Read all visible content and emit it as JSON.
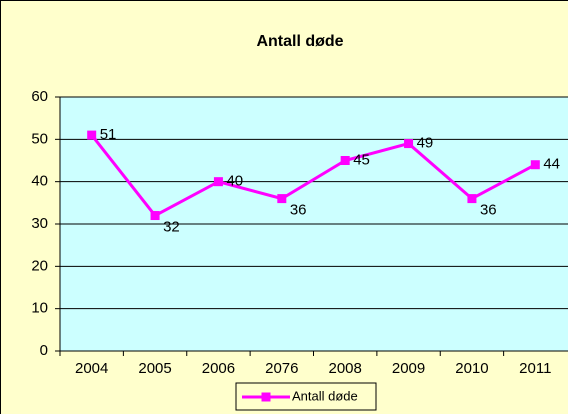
{
  "chart_data": {
    "type": "line",
    "title": "Antall døde",
    "categories": [
      "2004",
      "2005",
      "2006",
      "2076",
      "2008",
      "2009",
      "2010",
      "2011"
    ],
    "series": [
      {
        "name": "Antall døde",
        "color": "#ff00ff",
        "values": [
          51,
          32,
          40,
          36,
          45,
          49,
          36,
          44
        ]
      }
    ],
    "ylim": [
      0,
      60
    ],
    "yticks": [
      0,
      10,
      20,
      30,
      40,
      50,
      60
    ],
    "grid": true,
    "legend": "bottom"
  }
}
